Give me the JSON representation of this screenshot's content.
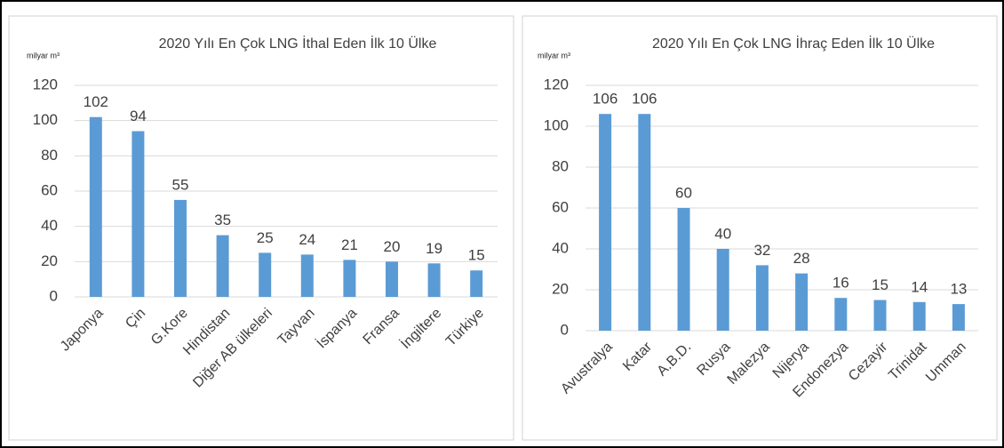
{
  "chart_data": [
    {
      "type": "bar",
      "title": "2020 Yılı En Çok LNG İthal Eden İlk 10 Ülke",
      "y_label": "milyar m³",
      "categories": [
        "Japonya",
        "Çin",
        "G.Kore",
        "Hindistan",
        "Diğer AB ülkeleri",
        "Tayvan",
        "İspanya",
        "Fransa",
        "İngiltere",
        "Türkiye"
      ],
      "values": [
        102,
        94,
        55,
        35,
        25,
        24,
        21,
        20,
        19,
        15
      ],
      "color": "#5b9bd5",
      "ylim": [
        0,
        120
      ],
      "yticks": [
        0,
        20,
        40,
        60,
        80,
        100,
        120
      ],
      "grid": true
    },
    {
      "type": "bar",
      "title": "2020 Yılı En Çok LNG İhraç Eden İlk 10 Ülke",
      "y_label": "milyar m³",
      "categories": [
        "Avustralya",
        "Katar",
        "A.B.D.",
        "Rusya",
        "Malezya",
        "Nijerya",
        "Endonezya",
        "Cezayir",
        "Trinidat",
        "Umman"
      ],
      "values": [
        106,
        106,
        60,
        40,
        32,
        28,
        16,
        15,
        14,
        13
      ],
      "color": "#5b9bd5",
      "ylim": [
        0,
        120
      ],
      "yticks": [
        0,
        20,
        40,
        60,
        80,
        100,
        120
      ],
      "grid": true
    }
  ]
}
